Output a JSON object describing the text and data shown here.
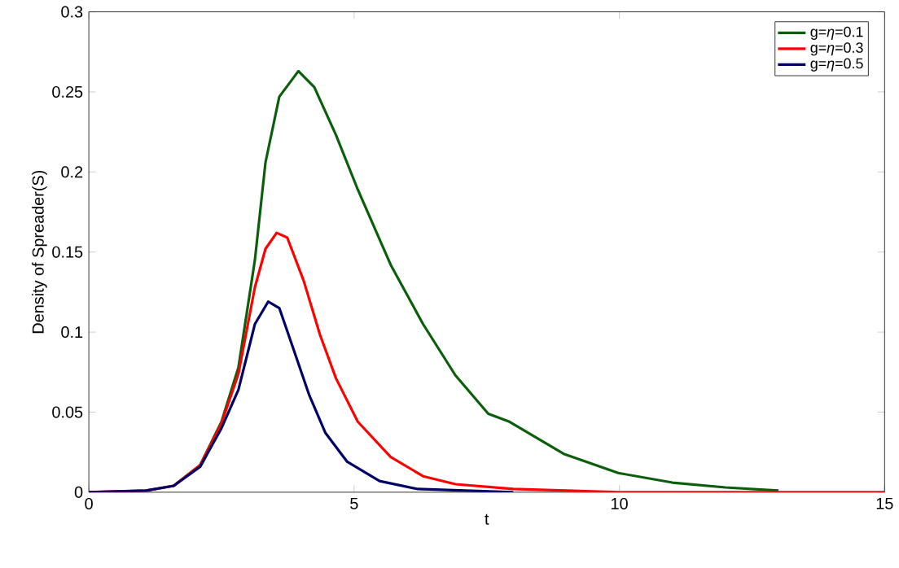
{
  "chart_data": {
    "type": "line",
    "xlabel": "t",
    "ylabel": "Density of Spreader(S)",
    "xlim": [
      0,
      15
    ],
    "ylim": [
      0,
      0.3
    ],
    "xticks": [
      0,
      5,
      10,
      15
    ],
    "yticks": [
      0,
      0.05,
      0.1,
      0.15,
      0.2,
      0.25,
      0.3
    ],
    "grid": false,
    "legend": "top right",
    "marker": "none",
    "line_style": "solid",
    "series": [
      {
        "name": "g=*η*=0.1",
        "color": "#0b5e0b",
        "x": [
          1.6,
          2.1,
          2.5,
          2.82,
          3.13,
          3.33,
          3.59,
          3.95,
          4.25,
          4.66,
          5.07,
          5.69,
          6.3,
          6.91,
          7.53,
          7.93,
          8.95,
          9.98,
          11.0,
          12.0,
          13.0
        ],
        "values": [
          0.004,
          0.017,
          0.044,
          0.078,
          0.145,
          0.206,
          0.247,
          0.263,
          0.253,
          0.223,
          0.189,
          0.142,
          0.105,
          0.073,
          0.049,
          0.044,
          0.024,
          0.012,
          0.006,
          0.003,
          0.001
        ]
      },
      {
        "name": "g=*η*=0.3",
        "color": "#ff0000",
        "x": [
          0,
          1.08,
          1.6,
          2.1,
          2.5,
          2.82,
          3.13,
          3.33,
          3.54,
          3.74,
          4.05,
          4.36,
          4.66,
          5.07,
          5.69,
          6.3,
          6.91,
          8.0,
          10.0,
          15.0
        ],
        "values": [
          0,
          0.001,
          0.004,
          0.017,
          0.043,
          0.074,
          0.128,
          0.152,
          0.162,
          0.159,
          0.132,
          0.098,
          0.071,
          0.044,
          0.022,
          0.01,
          0.005,
          0.002,
          0,
          0
        ]
      },
      {
        "name": "g=*η*=0.5",
        "color": "#000066",
        "x": [
          0,
          1.08,
          1.6,
          2.1,
          2.5,
          2.82,
          3.13,
          3.38,
          3.59,
          3.84,
          4.15,
          4.46,
          4.87,
          5.48,
          6.2,
          8.0
        ],
        "values": [
          0,
          0.001,
          0.004,
          0.016,
          0.04,
          0.064,
          0.105,
          0.119,
          0.115,
          0.091,
          0.061,
          0.037,
          0.019,
          0.007,
          0.002,
          0
        ]
      }
    ]
  }
}
